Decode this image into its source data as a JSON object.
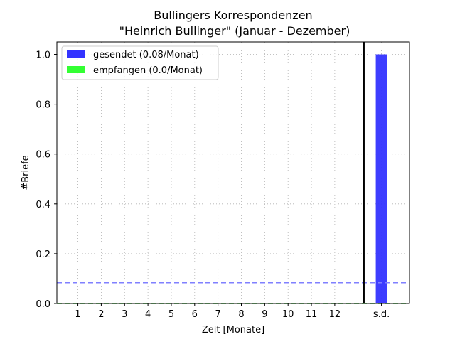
{
  "chart_data": {
    "type": "bar",
    "title": [
      "Bullingers Korrespondenzen",
      "\"Heinrich Bullinger\" (Januar - Dezember)"
    ],
    "xlabel": "Zeit [Monate]",
    "ylabel": "#Briefe",
    "categories": [
      "1",
      "2",
      "3",
      "4",
      "5",
      "6",
      "7",
      "8",
      "9",
      "10",
      "11",
      "12",
      "s.d."
    ],
    "series": [
      {
        "name": "gesendet (0.08/Monat)",
        "color": "#3333ff",
        "values": [
          0,
          0,
          0,
          0,
          0,
          0,
          0,
          0,
          0,
          0,
          0,
          0,
          1.0
        ]
      },
      {
        "name": "empfangen (0.0/Monat)",
        "color": "#33ff33",
        "values": [
          0,
          0,
          0,
          0,
          0,
          0,
          0,
          0,
          0,
          0,
          0,
          0,
          0
        ]
      }
    ],
    "reference_lines": [
      {
        "series": "gesendet (0.08/Monat)",
        "value": 0.0833,
        "style": "dashed",
        "color": "#8080ff"
      },
      {
        "series": "empfangen (0.0/Monat)",
        "value": 0.0,
        "style": "dashed",
        "color": "#33cc33"
      }
    ],
    "separator_x": 13.25,
    "xlim": [
      0.1,
      15.2
    ],
    "ylim": [
      0,
      1.05
    ],
    "yticks": [
      "0.0",
      "0.2",
      "0.4",
      "0.6",
      "0.8",
      "1.0"
    ],
    "grid": true,
    "legend_position": "upper-left"
  }
}
